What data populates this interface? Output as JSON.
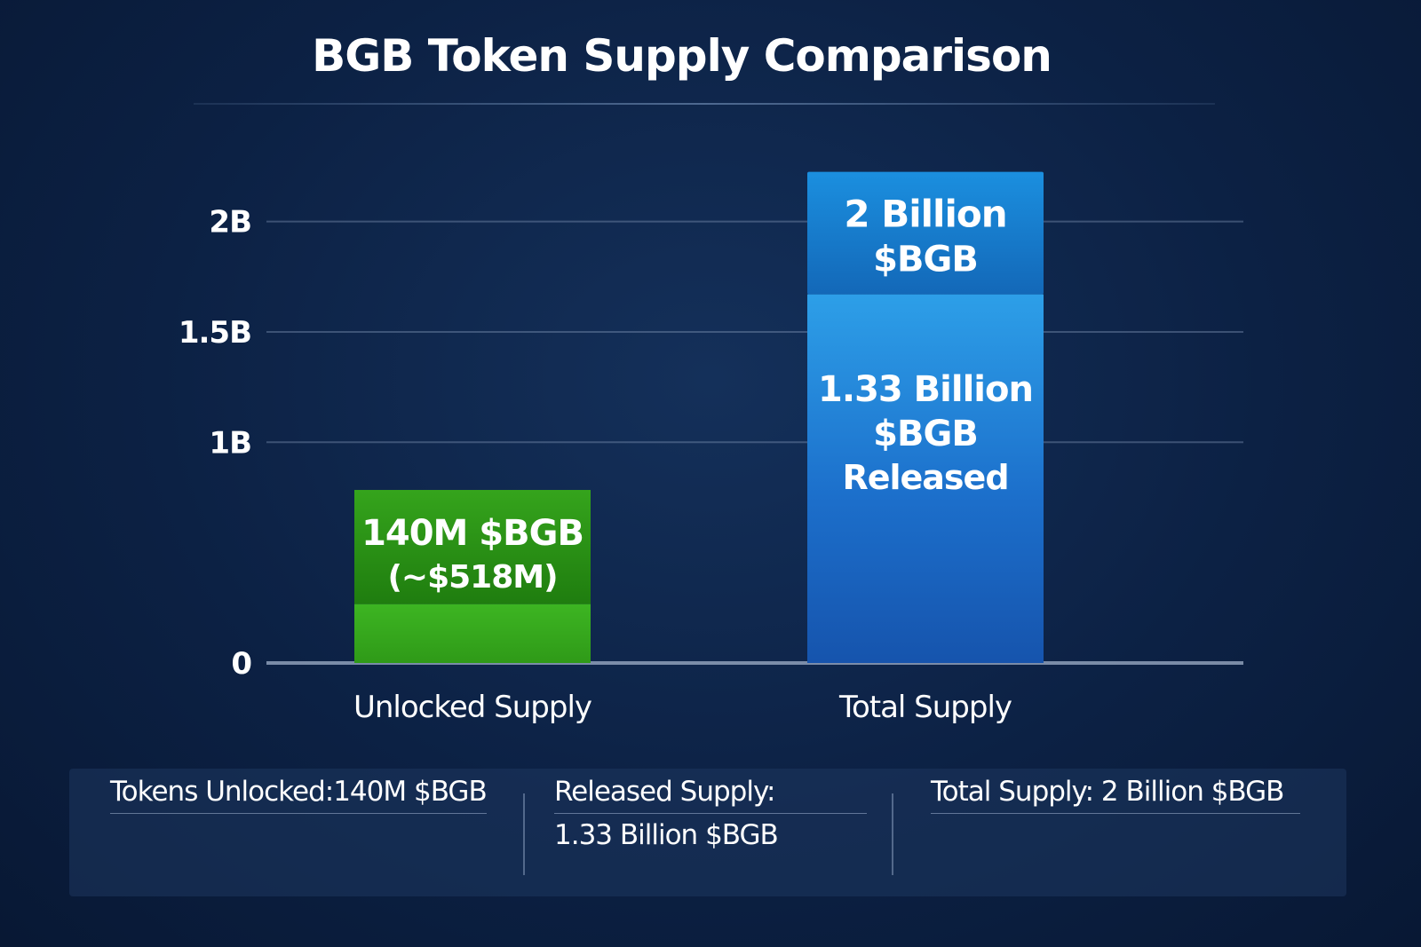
{
  "chart_data": {
    "type": "bar",
    "title": "BGB Token Supply Comparison",
    "categories": [
      "Unlocked Supply",
      "Total Supply"
    ],
    "values": [
      140000000,
      2000000000
    ],
    "segments": [
      {
        "category": "Unlocked Supply",
        "name": "Unlocked",
        "value": 140000000,
        "label": "140M $BGB (~$518M)",
        "label_parts": [
          "140M $BGB",
          "(~$518M)"
        ]
      },
      {
        "category": "Total Supply",
        "name": "Released",
        "value": 1330000000,
        "label": "1.33 Billion $BGB Released",
        "label_parts": [
          "1.33 Billion",
          "$BGB",
          "Released"
        ]
      },
      {
        "category": "Total Supply",
        "name": "Total",
        "value": 2000000000,
        "label": "2 Billion $BGB",
        "label_parts": [
          "2 Billion",
          "$BGB"
        ]
      }
    ],
    "y_ticks": [
      {
        "value": 0,
        "label": "0"
      },
      {
        "value": 1000000000,
        "label": "1B"
      },
      {
        "value": 1500000000,
        "label": "1.5B"
      },
      {
        "value": 2000000000,
        "label": "2B"
      }
    ],
    "ylim": [
      0,
      2300000000
    ],
    "grid": true,
    "colors": {
      "unlocked": "#3aa81e",
      "total_top": "#1a86d6",
      "total_body": "#2e9ee6"
    }
  },
  "summary": {
    "unlocked": "Tokens Unlocked:140M $BGB",
    "released_label": "Released Supply:",
    "released_value": "1.33 Billion $BGB",
    "total": "Total Supply: 2 Billion $BGB"
  }
}
